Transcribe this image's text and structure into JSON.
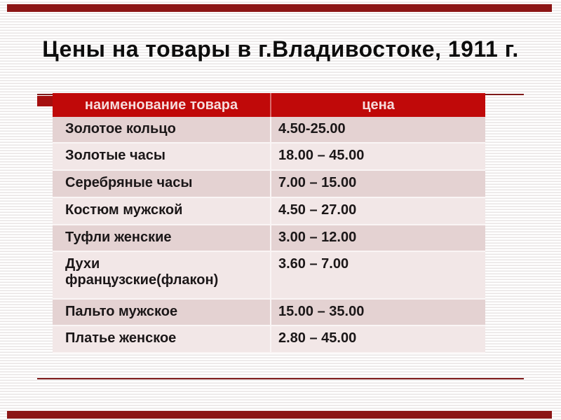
{
  "slide": {
    "title": "Цены на товары в г.Владивостоке, 1911 г."
  },
  "table": {
    "columns": [
      "наименование товара",
      "цена"
    ],
    "rows": [
      {
        "name": "Золотое кольцо",
        "price": "4.50-25.00"
      },
      {
        "name": "Золотые часы",
        "price": "18.00 – 45.00"
      },
      {
        "name": "Серебряные часы",
        "price": "7.00 – 15.00"
      },
      {
        "name": "Костюм мужской",
        "price": "4.50 – 27.00"
      },
      {
        "name": "Туфли женские",
        "price": "3.00 – 12.00"
      },
      {
        "name": "Духи\nфранцузские(флакон)",
        "price": "3.60 – 7.00"
      },
      {
        "name": "Пальто мужское",
        "price": "15.00 – 35.00"
      },
      {
        "name": "Платье женское",
        "price": "2.80 – 45.00"
      }
    ]
  },
  "colors": {
    "header_bg": "#c00909",
    "header_text": "#f6dcdc",
    "row_dark": "#e4d2d2",
    "row_light": "#f2e7e7",
    "accent_bar": "#8c1616",
    "accent_line": "#7e1a1a",
    "accent_rect": "#a50f0f",
    "body_text": "#1b1718"
  }
}
